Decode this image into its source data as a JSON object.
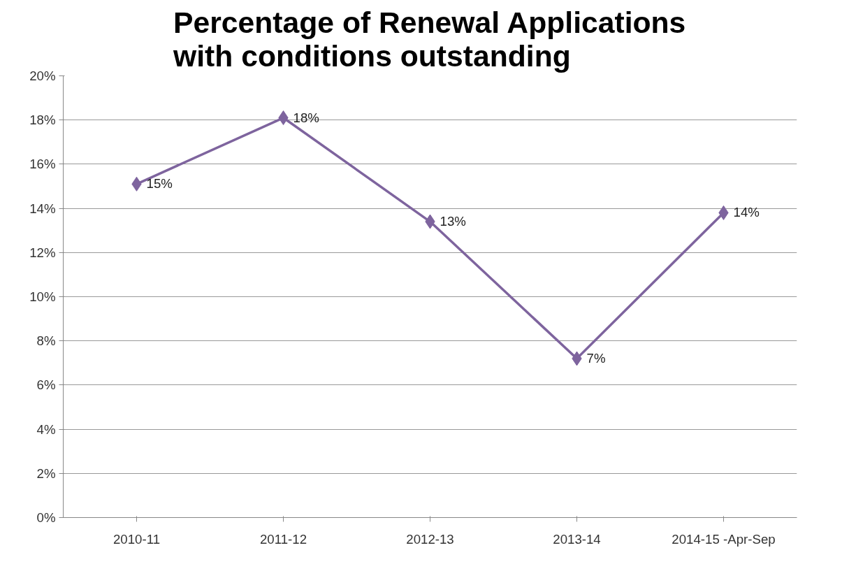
{
  "chart_data": {
    "type": "line",
    "title": "Percentage of Renewal Applications with conditions outstanding",
    "categories": [
      "2010-11",
      "2011-12",
      "2012-13",
      "2013-14",
      "2014-15 -Apr-Sep"
    ],
    "series": [
      {
        "color": "#7e649e",
        "values": [
          15.1,
          18.1,
          13.4,
          7.2,
          13.8
        ],
        "value_labels": [
          "15%",
          "18%",
          "13%",
          "7%",
          "14%"
        ]
      }
    ],
    "ylim": [
      0,
      20
    ],
    "yticks": [
      {
        "value": 0,
        "label": "0%"
      },
      {
        "value": 2,
        "label": "2%"
      },
      {
        "value": 4,
        "label": "4%"
      },
      {
        "value": 6,
        "label": "6%"
      },
      {
        "value": 8,
        "label": "8%"
      },
      {
        "value": 10,
        "label": "10%"
      },
      {
        "value": 12,
        "label": "12%"
      },
      {
        "value": 14,
        "label": "14%"
      },
      {
        "value": 16,
        "label": "16%"
      },
      {
        "value": 18,
        "label": "18%"
      },
      {
        "value": 20,
        "label": "20%"
      }
    ],
    "grid": "y",
    "marker": "diamond",
    "line_style": "solid"
  }
}
